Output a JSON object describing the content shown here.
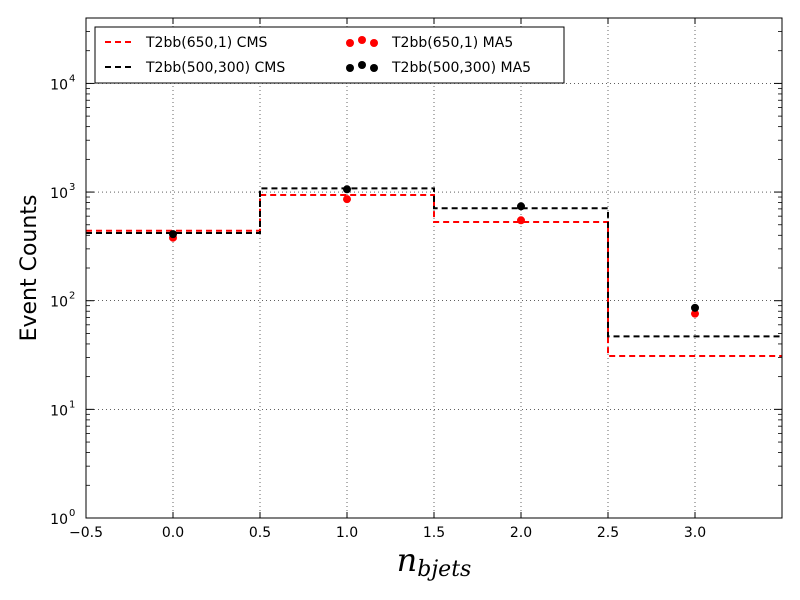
{
  "chart_data": {
    "type": "step",
    "xlabel": {
      "main": "n",
      "sub": "bjets"
    },
    "ylabel": "Event Counts",
    "xlim": [
      -0.5,
      3.5
    ],
    "ylim": [
      1,
      40000
    ],
    "yscale": "log",
    "grid": true,
    "legend_position": "top-left",
    "x_ticks": [
      {
        "value": -0.5,
        "label": "−0.5"
      },
      {
        "value": 0.0,
        "label": "0.0"
      },
      {
        "value": 0.5,
        "label": "0.5"
      },
      {
        "value": 1.0,
        "label": "1.0"
      },
      {
        "value": 1.5,
        "label": "1.5"
      },
      {
        "value": 2.0,
        "label": "2.0"
      },
      {
        "value": 2.5,
        "label": "2.5"
      },
      {
        "value": 3.0,
        "label": "3.0"
      }
    ],
    "y_ticks": [
      {
        "value": 1,
        "base": "10",
        "exp": "0"
      },
      {
        "value": 10,
        "base": "10",
        "exp": "1"
      },
      {
        "value": 100,
        "base": "10",
        "exp": "2"
      },
      {
        "value": 1000,
        "base": "10",
        "exp": "3"
      },
      {
        "value": 10000,
        "base": "10",
        "exp": "4"
      }
    ],
    "bin_edges": [
      -0.5,
      0.5,
      1.5,
      2.5,
      3.5
    ],
    "series": [
      {
        "name": "T2bb(650,1) CMS",
        "kind": "step",
        "color": "#ff0000",
        "values": [
          440,
          940,
          530,
          31
        ]
      },
      {
        "name": "T2bb(500,300) CMS",
        "kind": "step",
        "color": "#000000",
        "values": [
          420,
          1080,
          710,
          47
        ]
      },
      {
        "name": "T2bb(650,1) MA5",
        "kind": "points",
        "color": "#ff0000",
        "x": [
          0,
          1,
          2,
          3
        ],
        "values": [
          380,
          860,
          550,
          76
        ]
      },
      {
        "name": "T2bb(500,300) MA5",
        "kind": "points",
        "color": "#000000",
        "x": [
          0,
          1,
          2,
          3
        ],
        "values": [
          410,
          1060,
          740,
          86
        ]
      }
    ]
  }
}
